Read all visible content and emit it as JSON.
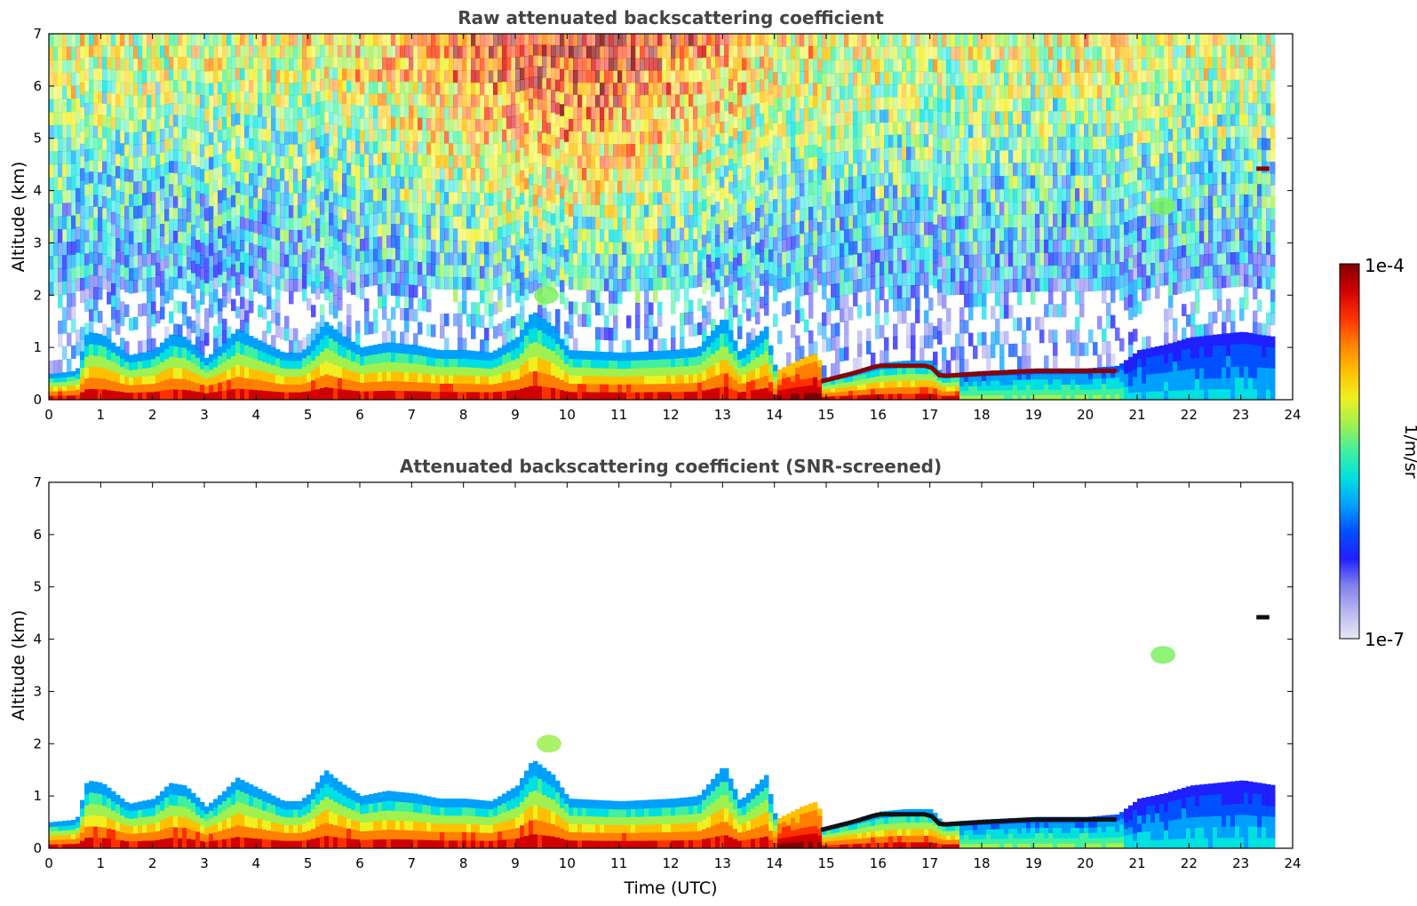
{
  "chart_data": [
    {
      "type": "heatmap",
      "panel": "top",
      "title": "Raw attenuated backscattering coefficient",
      "xlabel": "",
      "ylabel": "Altitude (km)",
      "xlim": [
        0,
        24
      ],
      "ylim": [
        0,
        7
      ],
      "x_ticks": [
        "0",
        "1",
        "2",
        "3",
        "4",
        "5",
        "6",
        "7",
        "8",
        "9",
        "10",
        "11",
        "12",
        "13",
        "14",
        "15",
        "16",
        "17",
        "18",
        "19",
        "20",
        "21",
        "22",
        "23",
        "24"
      ],
      "y_ticks": [
        "0",
        "1",
        "2",
        "3",
        "4",
        "5",
        "6",
        "7"
      ],
      "noise_field": true,
      "data_end_hour": 23.65,
      "boundary_layer_top_km": [
        [
          0,
          0.5
        ],
        [
          0.5,
          0.55
        ],
        [
          0.7,
          1.3
        ],
        [
          1.0,
          1.25
        ],
        [
          1.5,
          0.85
        ],
        [
          2.0,
          0.95
        ],
        [
          2.3,
          1.25
        ],
        [
          2.6,
          1.2
        ],
        [
          3.0,
          0.8
        ],
        [
          3.3,
          1.05
        ],
        [
          3.6,
          1.35
        ],
        [
          4.0,
          1.15
        ],
        [
          4.5,
          0.9
        ],
        [
          4.8,
          0.9
        ],
        [
          5.0,
          1.05
        ],
        [
          5.3,
          1.5
        ],
        [
          5.6,
          1.25
        ],
        [
          6.0,
          1.0
        ],
        [
          6.5,
          1.1
        ],
        [
          7.0,
          1.05
        ],
        [
          7.5,
          0.95
        ],
        [
          8.0,
          0.95
        ],
        [
          8.5,
          0.9
        ],
        [
          9.0,
          1.2
        ],
        [
          9.3,
          1.7
        ],
        [
          9.7,
          1.4
        ],
        [
          10.0,
          0.95
        ],
        [
          11.0,
          0.9
        ],
        [
          12.0,
          0.95
        ],
        [
          12.5,
          1.0
        ],
        [
          13.0,
          1.6
        ],
        [
          13.3,
          0.9
        ],
        [
          13.8,
          1.4
        ],
        [
          14.0,
          0.55
        ],
        [
          14.5,
          0.8
        ],
        [
          14.8,
          0.9
        ],
        [
          14.9,
          0.4
        ],
        [
          15.5,
          0.55
        ],
        [
          16.0,
          0.7
        ],
        [
          16.5,
          0.75
        ],
        [
          17.0,
          0.75
        ],
        [
          17.2,
          0.5
        ],
        [
          18.0,
          0.55
        ],
        [
          19.0,
          0.6
        ],
        [
          20.0,
          0.6
        ],
        [
          20.6,
          0.65
        ],
        [
          21.0,
          0.95
        ],
        [
          21.5,
          1.05
        ],
        [
          22.0,
          1.2
        ],
        [
          22.5,
          1.25
        ],
        [
          23.0,
          1.3
        ],
        [
          23.65,
          1.2
        ]
      ],
      "cloud_layers": [
        {
          "t_start": 14.9,
          "t_end": 20.6,
          "altitude_km": [
            [
              14.9,
              0.35
            ],
            [
              15.5,
              0.5
            ],
            [
              16.0,
              0.65
            ],
            [
              17.0,
              0.65
            ],
            [
              17.2,
              0.45
            ],
            [
              18.0,
              0.5
            ],
            [
              19.0,
              0.55
            ],
            [
              20.0,
              0.55
            ],
            [
              20.6,
              0.55
            ]
          ]
        },
        {
          "t_start": 23.3,
          "t_end": 23.55,
          "altitude_km": [
            [
              23.3,
              4.42
            ],
            [
              23.55,
              4.42
            ]
          ]
        }
      ],
      "aerosol_patches": [
        {
          "t": 21.5,
          "altitude_km": 3.7,
          "color": "#7cf060"
        },
        {
          "t": 9.6,
          "altitude_km": 2.0,
          "color": "#7cf060"
        }
      ]
    },
    {
      "type": "heatmap",
      "panel": "bottom",
      "title": "Attenuated backscattering coefficient (SNR-screened)",
      "xlabel": "Time (UTC)",
      "ylabel": "Altitude (km)",
      "xlim": [
        0,
        24
      ],
      "ylim": [
        0,
        7
      ],
      "x_ticks": [
        "0",
        "1",
        "2",
        "3",
        "4",
        "5",
        "6",
        "7",
        "8",
        "9",
        "10",
        "11",
        "12",
        "13",
        "14",
        "15",
        "16",
        "17",
        "18",
        "19",
        "20",
        "21",
        "22",
        "23",
        "24"
      ],
      "y_ticks": [
        "0",
        "1",
        "2",
        "3",
        "4",
        "5",
        "6",
        "7"
      ],
      "noise_field": false,
      "data_end_hour": 23.65,
      "cloud_layers": [
        {
          "t_start": 14.9,
          "t_end": 20.6,
          "altitude_km": [
            [
              14.9,
              0.35
            ],
            [
              15.5,
              0.5
            ],
            [
              16.0,
              0.65
            ],
            [
              17.0,
              0.65
            ],
            [
              17.2,
              0.45
            ],
            [
              18.0,
              0.5
            ],
            [
              19.0,
              0.55
            ],
            [
              20.0,
              0.55
            ],
            [
              20.6,
              0.55
            ]
          ]
        },
        {
          "t_start": 23.3,
          "t_end": 23.55,
          "altitude_km": [
            [
              23.3,
              4.42
            ],
            [
              23.55,
              4.42
            ]
          ]
        }
      ],
      "aerosol_patches": [
        {
          "t": 21.5,
          "altitude_km": 3.7,
          "color": "#7cf060"
        },
        {
          "t": 9.65,
          "altitude_km": 2.0,
          "color": "#9cf050"
        }
      ]
    }
  ],
  "colorbar": {
    "label": "1/m/sr",
    "max_label": "1e-4",
    "min_label": "1e-7",
    "colors": [
      "#e8e8f8",
      "#b8b8f0",
      "#8080f0",
      "#2020ff",
      "#0050ff",
      "#00a0ff",
      "#00e0e0",
      "#40f0a0",
      "#a0f050",
      "#f0f020",
      "#ffc000",
      "#ff8000",
      "#ff3000",
      "#d00000",
      "#800000"
    ]
  }
}
